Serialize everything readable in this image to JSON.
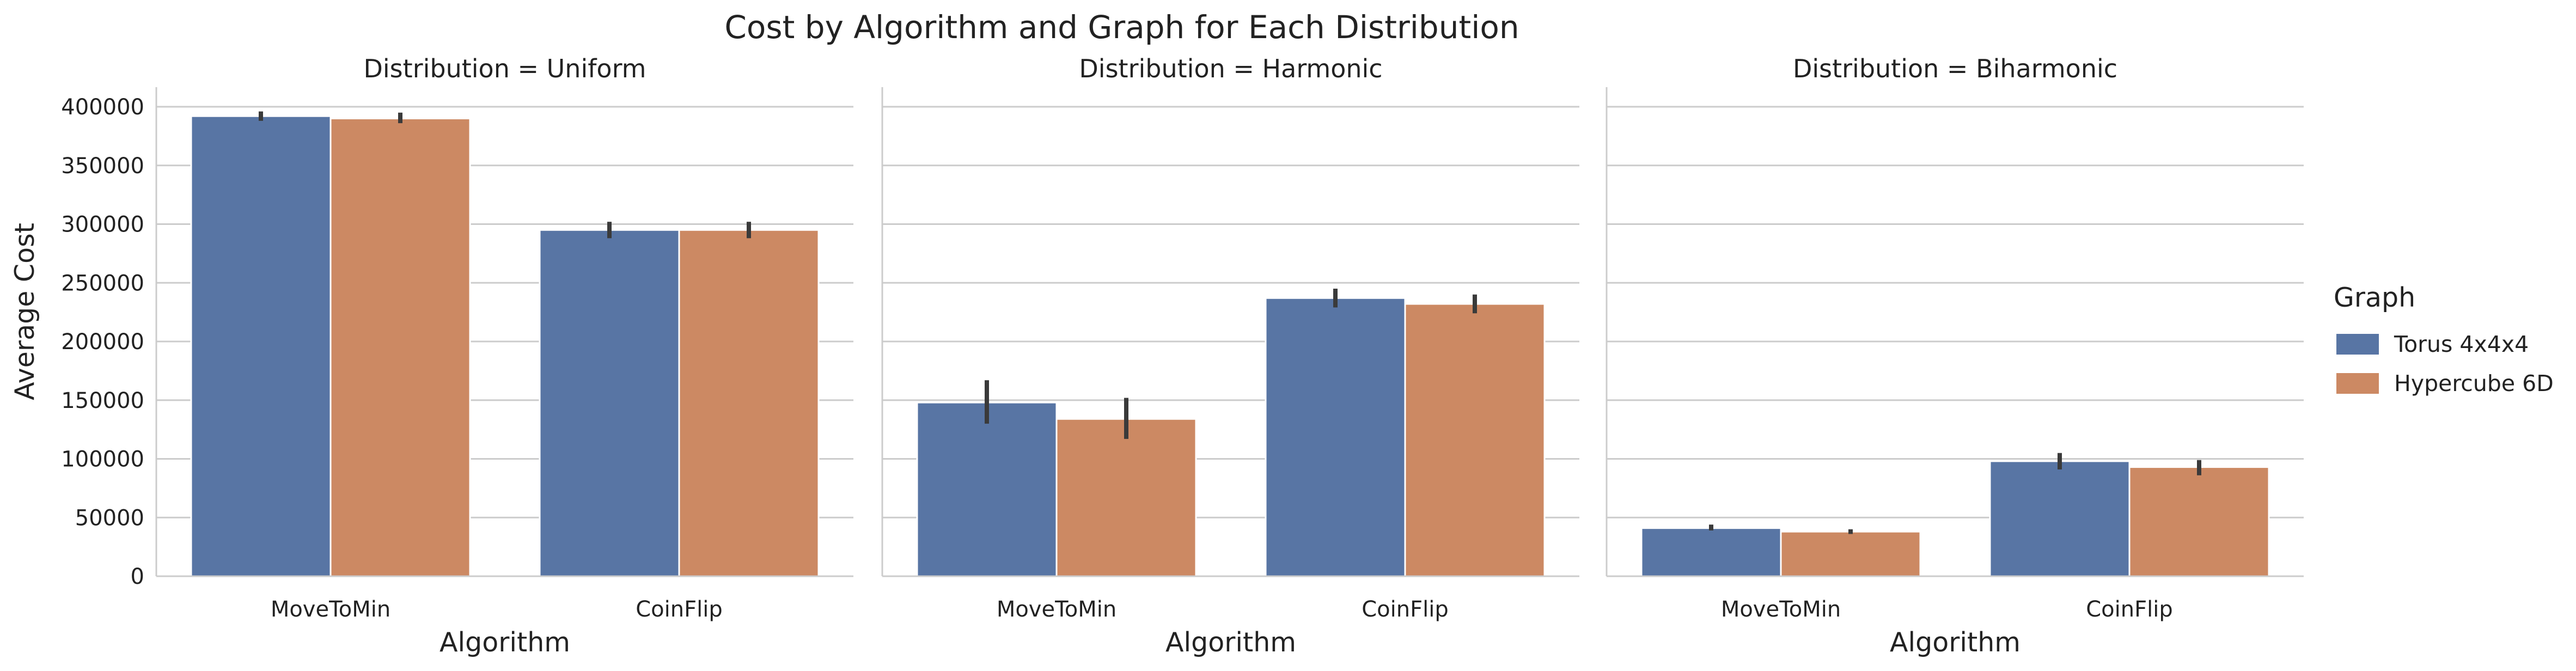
{
  "chart_data": {
    "type": "bar",
    "title": "Cost by Algorithm and Graph for Each Distribution",
    "xlabel": "Algorithm",
    "ylabel": "Average Cost",
    "ylim": [
      0,
      400000
    ],
    "yticks": [
      0,
      50000,
      100000,
      150000,
      200000,
      250000,
      300000,
      350000,
      400000
    ],
    "grid": "horizontal",
    "legend": {
      "title": "Graph",
      "position": "right",
      "entries": [
        "Torus 4x4x4",
        "Hypercube 6D"
      ]
    },
    "colors": {
      "Torus 4x4x4": "#5875a4",
      "Hypercube 6D": "#cc8963"
    },
    "categories": [
      "MoveToMin",
      "CoinFlip"
    ],
    "panels": [
      {
        "title": "Distribution = Uniform",
        "series": [
          {
            "name": "Torus 4x4x4",
            "values": [
              392000,
              295000
            ],
            "ci": [
              [
                388000,
                396000
              ],
              [
                288000,
                302000
              ]
            ]
          },
          {
            "name": "Hypercube 6D",
            "values": [
              390000,
              295000
            ],
            "ci": [
              [
                386000,
                395000
              ],
              [
                288000,
                302000
              ]
            ]
          }
        ]
      },
      {
        "title": "Distribution = Harmonic",
        "series": [
          {
            "name": "Torus 4x4x4",
            "values": [
              148000,
              237000
            ],
            "ci": [
              [
                130000,
                167000
              ],
              [
                229000,
                245000
              ]
            ]
          },
          {
            "name": "Hypercube 6D",
            "values": [
              134000,
              232000
            ],
            "ci": [
              [
                117000,
                152000
              ],
              [
                224000,
                240000
              ]
            ]
          }
        ]
      },
      {
        "title": "Distribution = Biharmonic",
        "series": [
          {
            "name": "Torus 4x4x4",
            "values": [
              41000,
              98000
            ],
            "ci": [
              [
                39000,
                44000
              ],
              [
                91000,
                105000
              ]
            ]
          },
          {
            "name": "Hypercube 6D",
            "values": [
              38000,
              93000
            ],
            "ci": [
              [
                36000,
                40000
              ],
              [
                86000,
                99000
              ]
            ]
          }
        ]
      }
    ]
  }
}
